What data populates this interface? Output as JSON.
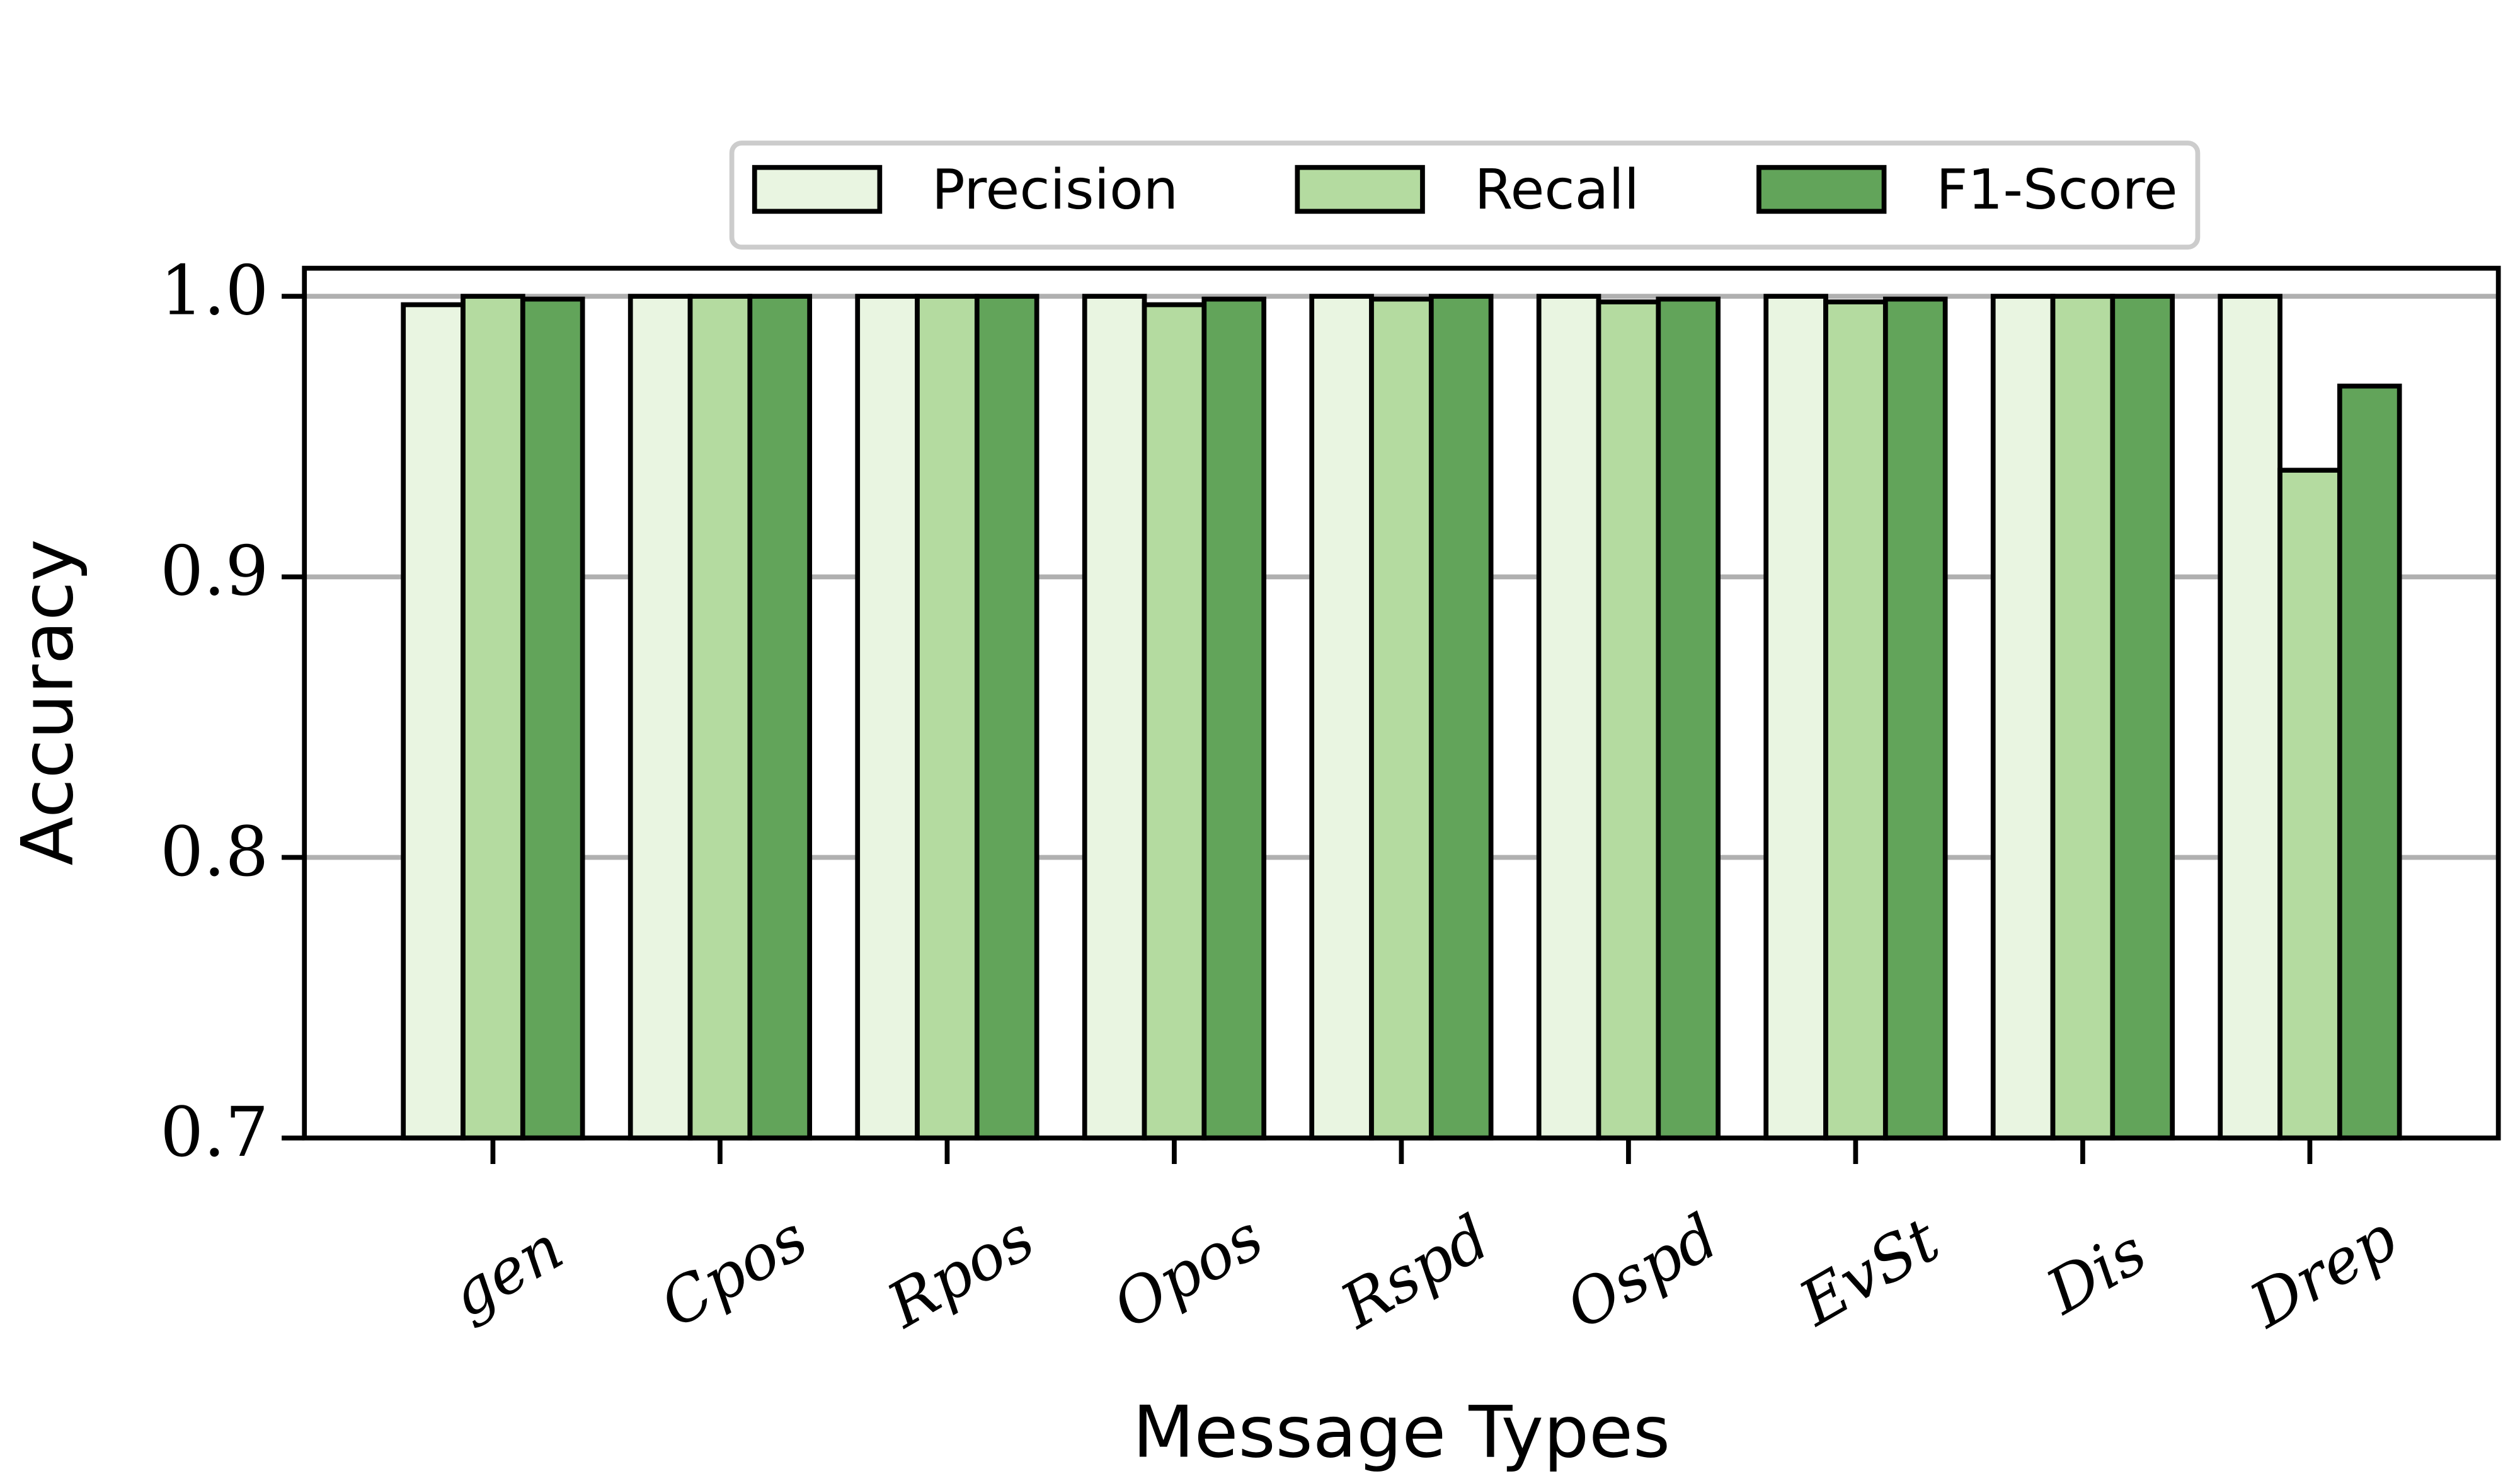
{
  "chart_data": {
    "type": "bar",
    "x_label": "Message Types",
    "y_label": "Accuracy",
    "categories": [
      "gen",
      "Cpos",
      "Rpos",
      "Opos",
      "Rspd",
      "Ospd",
      "EvSt",
      "Dis",
      "Drep"
    ],
    "series": [
      {
        "name": "Precision",
        "color": "#e9f5e1",
        "values": [
          0.997,
          1.0,
          1.0,
          1.0,
          1.0,
          1.0,
          1.0,
          1.0,
          1.0
        ]
      },
      {
        "name": "Recall",
        "color": "#b4dba0",
        "values": [
          1.0,
          1.0,
          1.0,
          0.997,
          0.999,
          0.998,
          0.998,
          1.0,
          0.938
        ]
      },
      {
        "name": "F1-Score",
        "color": "#62a45a",
        "values": [
          0.999,
          1.0,
          1.0,
          0.999,
          1.0,
          0.999,
          0.999,
          1.0,
          0.968
        ]
      }
    ],
    "ylim": [
      0.7,
      1.01
    ],
    "yticks": [
      0.7,
      0.8,
      0.9,
      {
        "value": 1,
        "label": "1.0"
      }
    ],
    "grid": true,
    "legend": "top"
  }
}
